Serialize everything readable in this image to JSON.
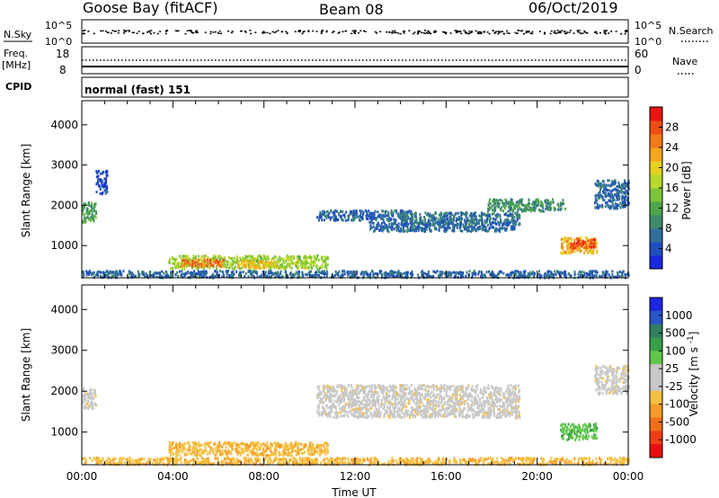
{
  "header": {
    "station": "Goose Bay (fitACF)",
    "beam": "Beam 08",
    "date": "06/Oct/2019"
  },
  "strip_labels": {
    "nsky": "N.Sky",
    "nsearch": "N.Search",
    "freq_line1": "Freq.",
    "freq_line2": "[MHz]",
    "nave": "Nave",
    "cpid": "CPID",
    "mode": "normal (fast) 151"
  },
  "colors": {
    "power_scale": [
      "#1a26e0",
      "#1f4fbf",
      "#2f6f9a",
      "#3d8a6a",
      "#4da64a",
      "#7cc43a",
      "#b8d92a",
      "#e8d020",
      "#f5a51e",
      "#f27a18",
      "#ee4d14",
      "#e8140f"
    ],
    "velocity_scale": [
      "#1a26e0",
      "#2855c8",
      "#2f8060",
      "#38a048",
      "#60c84a",
      "#c8c8c8",
      "#c8c8c8",
      "#f5c040",
      "#f59a28",
      "#f07018",
      "#ee4014",
      "#e8100f"
    ]
  },
  "chart_data": [
    {
      "type": "line",
      "title": "N.Sky / N.Search",
      "y_left_ticks": [
        "10^5",
        "10^0"
      ],
      "y_right_ticks": [
        "10^5",
        "10^0"
      ],
      "series": [
        {
          "name": "N.Sky",
          "level": "near 10^5"
        },
        {
          "name": "N.Search",
          "style": "dotted"
        }
      ]
    },
    {
      "type": "line",
      "y_left_ticks": [
        "18",
        "8"
      ],
      "y_right_ticks": [
        "60",
        "0"
      ],
      "series": [
        {
          "name": "Freq.",
          "value_MHz": 10.5
        },
        {
          "name": "Nave",
          "style": "dotted",
          "value": 36
        }
      ]
    },
    {
      "type": "heatmap",
      "quantity": "Power",
      "colorbar_label": "Power [dB]",
      "colorbar_ticks": [
        "4",
        "8",
        "12",
        "16",
        "20",
        "24",
        "28"
      ],
      "colorbar_range": [
        0,
        32
      ],
      "ylabel": "Slant Range [km]",
      "y_ticks": [
        "1000",
        "2000",
        "3000",
        "4000"
      ],
      "ylim": [
        200,
        4600
      ],
      "xlim_hours": [
        0,
        24
      ],
      "regions": [
        {
          "t0": 0.0,
          "t1": 0.6,
          "r0": 1600,
          "r1": 2100,
          "p": 11
        },
        {
          "t0": 0.6,
          "t1": 1.1,
          "r0": 2300,
          "r1": 2900,
          "p": 4
        },
        {
          "t0": 3.8,
          "t1": 10.8,
          "r0": 450,
          "r1": 780,
          "p": 16
        },
        {
          "t0": 4.3,
          "t1": 6.2,
          "r0": 500,
          "r1": 680,
          "p": 26
        },
        {
          "t0": 6.8,
          "t1": 8.6,
          "r0": 470,
          "r1": 640,
          "p": 21
        },
        {
          "t0": 10.3,
          "t1": 14.5,
          "r0": 1650,
          "r1": 1900,
          "p": 6
        },
        {
          "t0": 14.0,
          "t1": 19.2,
          "r0": 1550,
          "r1": 1850,
          "p": 7
        },
        {
          "t0": 12.6,
          "t1": 19.0,
          "r0": 1380,
          "r1": 1620,
          "p": 6
        },
        {
          "t0": 17.8,
          "t1": 21.2,
          "r0": 1880,
          "r1": 2180,
          "p": 10
        },
        {
          "t0": 21.0,
          "t1": 22.6,
          "r0": 840,
          "r1": 1230,
          "p": 22
        },
        {
          "t0": 21.4,
          "t1": 22.6,
          "r0": 950,
          "r1": 1180,
          "p": 28
        },
        {
          "t0": 22.5,
          "t1": 24.0,
          "r0": 1950,
          "r1": 2650,
          "p": 6
        },
        {
          "t0": 0.0,
          "t1": 24.0,
          "r0": 230,
          "r1": 400,
          "p": 6
        }
      ]
    },
    {
      "type": "heatmap",
      "quantity": "Velocity",
      "colorbar_label": "Velocity [m s^-1]",
      "colorbar_ticks": [
        "-1000",
        "-500",
        "-100",
        "-25",
        "25",
        "100",
        "500",
        "1000"
      ],
      "ylabel": "Slant Range [km]",
      "y_ticks": [
        "1000",
        "2000",
        "3000",
        "4000"
      ],
      "ylim": [
        200,
        4600
      ],
      "xlabel": "Time UT",
      "x_ticks": [
        "00:00",
        "04:00",
        "08:00",
        "12:00",
        "16:00",
        "20:00",
        "00:00"
      ],
      "xlim_hours": [
        0,
        24
      ],
      "regions": [
        {
          "t0": 0.0,
          "t1": 0.6,
          "r0": 1600,
          "r1": 2100,
          "v": "gray"
        },
        {
          "t0": 3.8,
          "t1": 10.8,
          "r0": 450,
          "r1": 780,
          "v": "orange"
        },
        {
          "t0": 10.3,
          "t1": 19.2,
          "r0": 1380,
          "r1": 2180,
          "v": "gray"
        },
        {
          "t0": 21.0,
          "t1": 22.6,
          "r0": 840,
          "r1": 1230,
          "v": "green"
        },
        {
          "t0": 22.5,
          "t1": 24.0,
          "r0": 1950,
          "r1": 2650,
          "v": "gray"
        },
        {
          "t0": 0.0,
          "t1": 24.0,
          "r0": 230,
          "r1": 400,
          "v": "orange"
        }
      ]
    }
  ]
}
